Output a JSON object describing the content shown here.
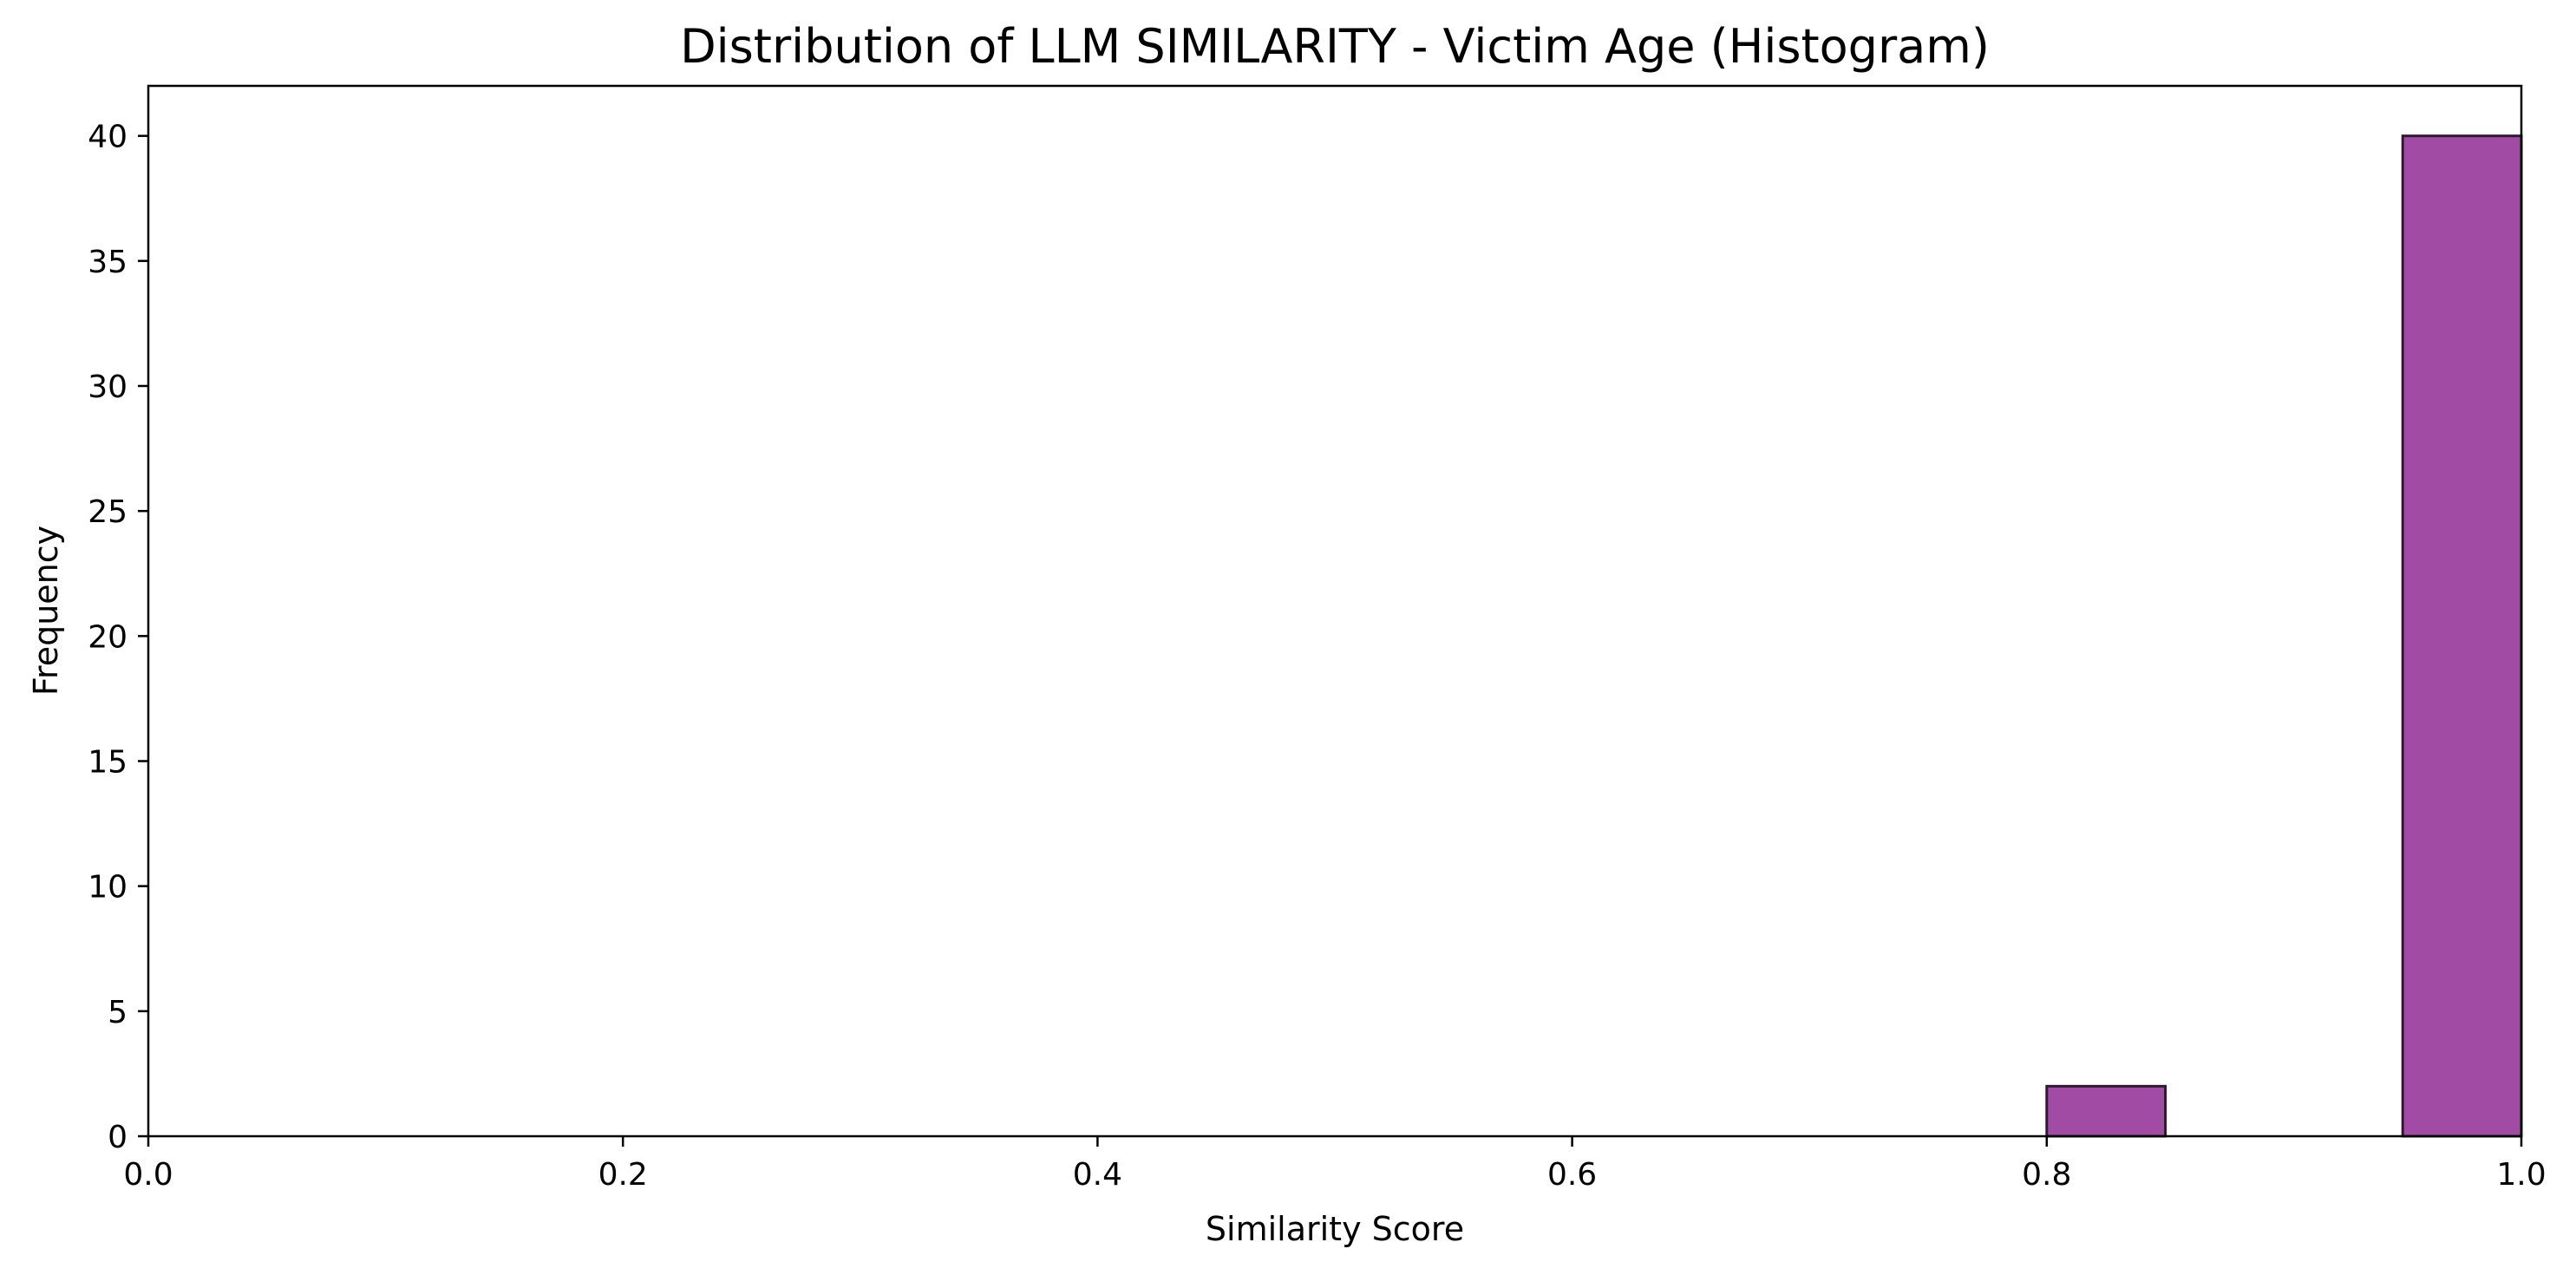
{
  "chart_data": {
    "type": "bar",
    "title": "Distribution of LLM SIMILARITY - Victim Age (Histogram)",
    "xlabel": "Similarity Score",
    "ylabel": "Frequency",
    "xlim": [
      0.0,
      1.0
    ],
    "ylim": [
      0,
      42
    ],
    "grid": false,
    "bar_color": "#a24ba5",
    "edge_color": "#2e1a2f",
    "bins": [
      {
        "x_start": 0.8,
        "x_end": 0.85,
        "value": 2
      },
      {
        "x_start": 0.95,
        "x_end": 1.0,
        "value": 40
      }
    ],
    "x_ticks": [
      {
        "value": 0.0,
        "label": "0.0"
      },
      {
        "value": 0.2,
        "label": "0.2"
      },
      {
        "value": 0.4,
        "label": "0.4"
      },
      {
        "value": 0.6,
        "label": "0.6"
      },
      {
        "value": 0.8,
        "label": "0.8"
      },
      {
        "value": 1.0,
        "label": "1.0"
      }
    ],
    "y_ticks": [
      {
        "value": 0,
        "label": "0"
      },
      {
        "value": 5,
        "label": "5"
      },
      {
        "value": 10,
        "label": "10"
      },
      {
        "value": 15,
        "label": "15"
      },
      {
        "value": 20,
        "label": "20"
      },
      {
        "value": 25,
        "label": "25"
      },
      {
        "value": 30,
        "label": "30"
      },
      {
        "value": 35,
        "label": "35"
      },
      {
        "value": 40,
        "label": "40"
      }
    ]
  }
}
